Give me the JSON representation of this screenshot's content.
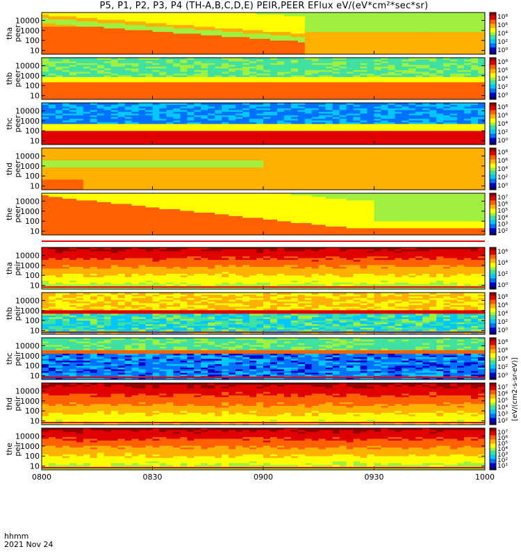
{
  "title": "P5, P1, P2, P3, P4 (TH-A,B,C,D,E) PEIR,PEER EFlux eV/(eV*cm²*sec*sr)",
  "time_label": "hhmm",
  "date_label": "2021 Nov 24",
  "colorbar_unit": "[eV/(cm2-s-sr-eV)]",
  "colors": {
    "scale": [
      "#0a0060",
      "#0000c8",
      "#0070ff",
      "#00c8ff",
      "#40e0a0",
      "#a0f040",
      "#ffff00",
      "#ffb000",
      "#ff6000",
      "#e00000",
      "#900000"
    ],
    "fill_line": "#000000"
  },
  "chart_data": [
    {
      "type": "heatmap",
      "panel": "tha peer",
      "ylabel": [
        "tha",
        "peer"
      ],
      "yscale": "log",
      "ylim": [
        7,
        30000
      ],
      "yticks": [
        "10",
        "100",
        "1000",
        "10000"
      ],
      "colorbar_ticks": [
        "10⁸",
        "10⁶",
        "10⁴",
        "10²",
        "10⁰"
      ],
      "x": [
        "0800",
        "0830",
        "0900",
        "0930",
        "1000"
      ],
      "description_level": [
        9,
        9,
        8,
        7,
        5,
        4,
        4,
        4
      ]
    },
    {
      "type": "heatmap",
      "panel": "thb peer",
      "ylabel": [
        "thb",
        "peer"
      ],
      "yscale": "log",
      "ylim": [
        7,
        30000
      ],
      "yticks": [
        "10",
        "100",
        "1000",
        "10000"
      ],
      "colorbar_ticks": [
        "10⁸",
        "10⁶",
        "10⁴",
        "10²",
        "10⁰"
      ],
      "x": [
        "0800",
        "0830",
        "0900",
        "0930",
        "1000"
      ]
    },
    {
      "type": "heatmap",
      "panel": "thc peer",
      "ylabel": [
        "thc",
        "peer"
      ],
      "yscale": "log",
      "ylim": [
        7,
        30000
      ],
      "yticks": [
        "10",
        "100",
        "1000",
        "10000"
      ],
      "colorbar_ticks": [
        "10⁸",
        "10⁶",
        "10⁴",
        "10²",
        "10⁰"
      ],
      "x": [
        "0800",
        "0830",
        "0900",
        "0930",
        "1000"
      ]
    },
    {
      "type": "heatmap",
      "panel": "thd peer",
      "ylabel": [
        "thd",
        "peer"
      ],
      "yscale": "log",
      "ylim": [
        7,
        30000
      ],
      "yticks": [
        "10",
        "100",
        "1000",
        "10000"
      ],
      "colorbar_ticks": [
        "10⁸",
        "10⁶",
        "10⁴",
        "10²",
        "10⁰"
      ],
      "x": [
        "0800",
        "0830",
        "0900",
        "0930",
        "1000"
      ]
    },
    {
      "type": "heatmap",
      "panel": "the peer",
      "ylabel": [
        "the",
        "peer"
      ],
      "yscale": "log",
      "ylim": [
        7,
        30000
      ],
      "yticks": [
        "10",
        "100",
        "1000",
        "10000"
      ],
      "colorbar_ticks": [
        "10⁷",
        "10⁶",
        "10⁵",
        "10⁴",
        "10³",
        "10²"
      ],
      "x": [
        "0800",
        "0830",
        "0900",
        "0930",
        "1000"
      ]
    },
    {
      "type": "heatmap",
      "panel": "tha peir",
      "ylabel": [
        "tha",
        "peir"
      ],
      "yscale": "log",
      "ylim": [
        7,
        30000
      ],
      "yticks": [
        "10",
        "100",
        "1000",
        "10000"
      ],
      "colorbar_ticks": [
        "10⁶",
        "10⁴",
        "10²",
        "10⁰"
      ],
      "x": [
        "0800",
        "0830",
        "0900",
        "0930",
        "1000"
      ]
    },
    {
      "type": "heatmap",
      "panel": "thb peir",
      "ylabel": [
        "thb",
        "peir"
      ],
      "yscale": "log",
      "ylim": [
        7,
        30000
      ],
      "yticks": [
        "10",
        "100",
        "1000",
        "10000"
      ],
      "colorbar_ticks": [
        "10⁸",
        "10⁶",
        "10⁴",
        "10²",
        "10⁰"
      ],
      "x": [
        "0800",
        "0830",
        "0900",
        "0930",
        "1000"
      ]
    },
    {
      "type": "heatmap",
      "panel": "thc peir",
      "ylabel": [
        "thc",
        "peir"
      ],
      "yscale": "log",
      "ylim": [
        7,
        30000
      ],
      "yticks": [
        "10",
        "100",
        "1000",
        "10000"
      ],
      "colorbar_ticks": [
        "10⁸",
        "10⁶",
        "10⁴",
        "10²",
        "10⁰"
      ],
      "x": [
        "0800",
        "0830",
        "0900",
        "0930",
        "1000"
      ]
    },
    {
      "type": "heatmap",
      "panel": "thd peir",
      "ylabel": [
        "thd",
        "peir"
      ],
      "yscale": "log",
      "ylim": [
        7,
        30000
      ],
      "yticks": [
        "10",
        "100",
        "1000",
        "10000"
      ],
      "colorbar_ticks": [
        "10⁷",
        "10⁶",
        "10⁵",
        "10⁴",
        "10³",
        "10²"
      ],
      "x": [
        "0800",
        "0830",
        "0900",
        "0930",
        "1000"
      ]
    },
    {
      "type": "heatmap",
      "panel": "the peir",
      "ylabel": [
        "the",
        "peir"
      ],
      "yscale": "log",
      "ylim": [
        7,
        30000
      ],
      "yticks": [
        "10",
        "100",
        "1000",
        "10000"
      ],
      "colorbar_ticks": [
        "10⁷",
        "10⁶",
        "10⁵",
        "10⁴",
        "10³",
        "10²",
        "10¹"
      ],
      "x": [
        "0800",
        "0830",
        "0900",
        "0930",
        "1000"
      ]
    }
  ]
}
